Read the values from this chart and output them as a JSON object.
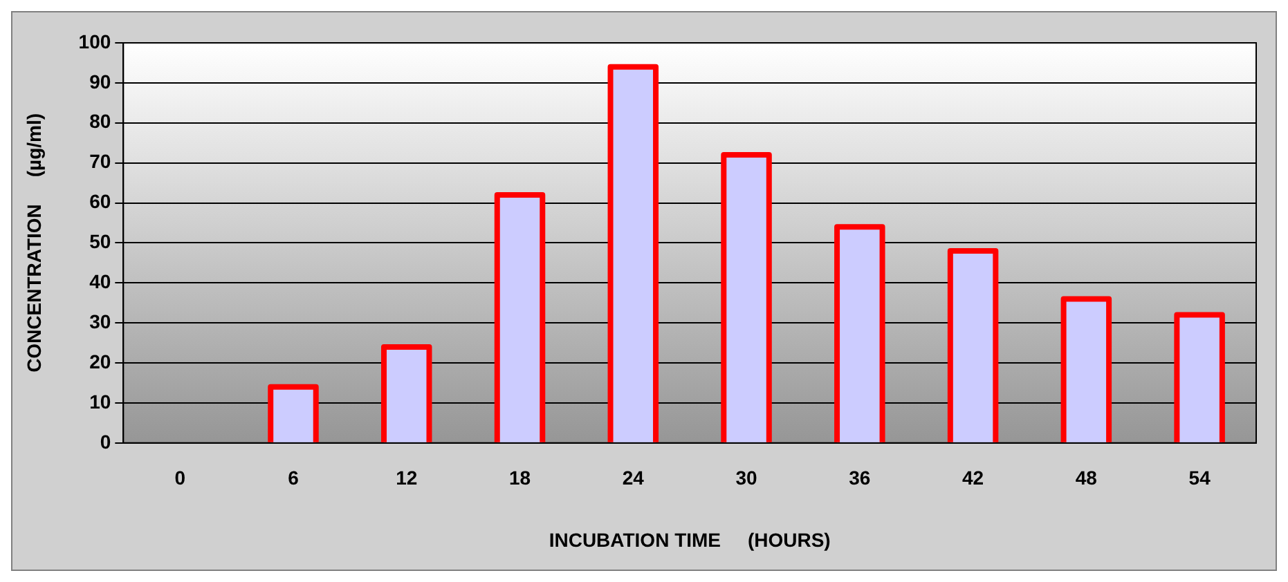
{
  "chart_data": {
    "type": "bar",
    "xlabel": "INCUBATION TIME     (HOURS)",
    "ylabel": "CONCENTRATION     (µg/ml)",
    "categories": [
      "0",
      "6",
      "12",
      "18",
      "24",
      "30",
      "36",
      "42",
      "48",
      "54"
    ],
    "series": [
      {
        "color": "#ccccff",
        "values": [
          0,
          14,
          24,
          62,
          94,
          72,
          54,
          48,
          36,
          32
        ]
      }
    ],
    "ylim": [
      0,
      100
    ],
    "yticks": [
      0,
      10,
      20,
      30,
      40,
      50,
      60,
      70,
      80,
      90,
      100
    ],
    "grid": "y",
    "legend": false
  }
}
